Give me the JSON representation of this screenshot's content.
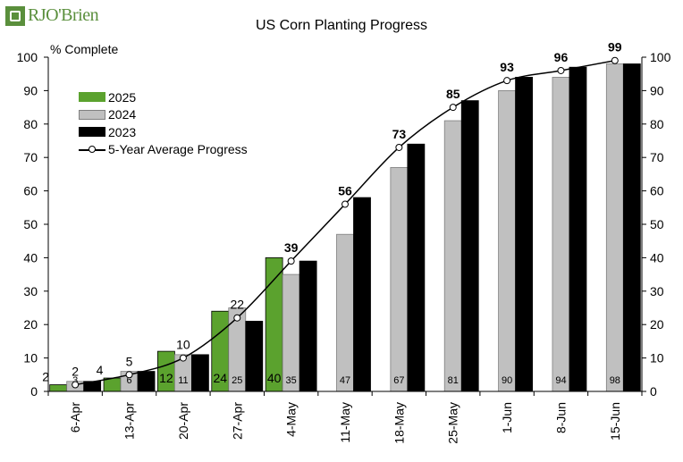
{
  "logo": {
    "text": "RJO'Brien"
  },
  "chart_data": {
    "type": "bar",
    "title": "US Corn Planting Progress",
    "ylabel": "% Complete",
    "ylim": [
      0,
      100
    ],
    "yticks": [
      0,
      10,
      20,
      30,
      40,
      50,
      60,
      70,
      80,
      90,
      100
    ],
    "y_axis_right_mirror": true,
    "categories": [
      "6-Apr",
      "13-Apr",
      "20-Apr",
      "27-Apr",
      "4-May",
      "11-May",
      "18-May",
      "25-May",
      "1-Jun",
      "8-Jun",
      "15-Jun"
    ],
    "series": [
      {
        "name": "2025",
        "color": "#5ba22e",
        "values": [
          2,
          4,
          12,
          24,
          40,
          null,
          null,
          null,
          null,
          null,
          null
        ]
      },
      {
        "name": "2024",
        "color": "#c0c0c0",
        "values": [
          3,
          6,
          11,
          25,
          35,
          47,
          67,
          81,
          90,
          94,
          98
        ]
      },
      {
        "name": "2023",
        "color": "#000000",
        "values": [
          3,
          6,
          11,
          21,
          39,
          58,
          74,
          87,
          94,
          97,
          98
        ]
      }
    ],
    "line_series": {
      "name": "5-Year Average Progress",
      "color": "#000000",
      "values": [
        2,
        5,
        10,
        22,
        39,
        56,
        73,
        85,
        93,
        96,
        99
      ]
    },
    "legend_position": "top-left",
    "grid": false
  }
}
